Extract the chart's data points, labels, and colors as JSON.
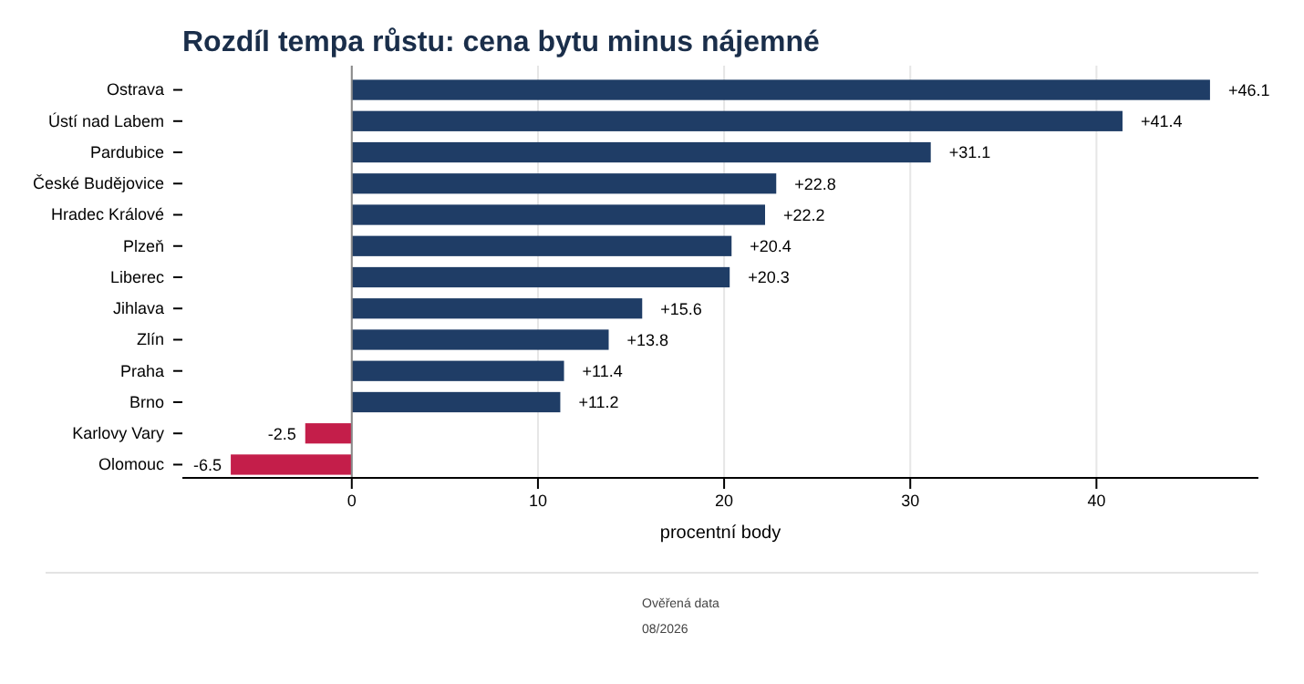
{
  "chart_data": {
    "type": "bar",
    "orientation": "horizontal",
    "title": "Rozdíl tempa růstu: cena bytu minus nájemné",
    "xlabel": "procentní body",
    "categories": [
      "Ostrava",
      "Ústí nad Labem",
      "Pardubice",
      "České Budějovice",
      "Hradec Králové",
      "Plzeň",
      "Liberec",
      "Jihlava",
      "Zlín",
      "Praha",
      "Brno",
      "Karlovy Vary",
      "Olomouc"
    ],
    "values": [
      46.1,
      41.4,
      31.1,
      22.8,
      22.2,
      20.4,
      20.3,
      15.6,
      13.8,
      11.4,
      11.2,
      -2.5,
      -6.5
    ],
    "colors": [
      "#1f3d66",
      "#1f3d66",
      "#1f3d66",
      "#1f3d66",
      "#1f3d66",
      "#1f3d66",
      "#1f3d66",
      "#1f3d66",
      "#1f3d66",
      "#1f3d66",
      "#1f3d66",
      "#c41e4a",
      "#c41e4a"
    ],
    "value_labels": [
      "+46.1",
      "+41.4",
      "+31.1",
      "+22.8",
      "+22.2",
      "+20.4",
      "+20.3",
      "+15.6",
      "+13.8",
      "+11.4",
      "+11.2",
      "-2.5",
      "-6.5"
    ],
    "xlim": [
      -9.1,
      48.7
    ],
    "xticks": [
      0,
      10,
      20,
      30,
      40
    ],
    "grid": "x",
    "annotations": [
      "Ověřená data",
      "08/2026"
    ]
  }
}
